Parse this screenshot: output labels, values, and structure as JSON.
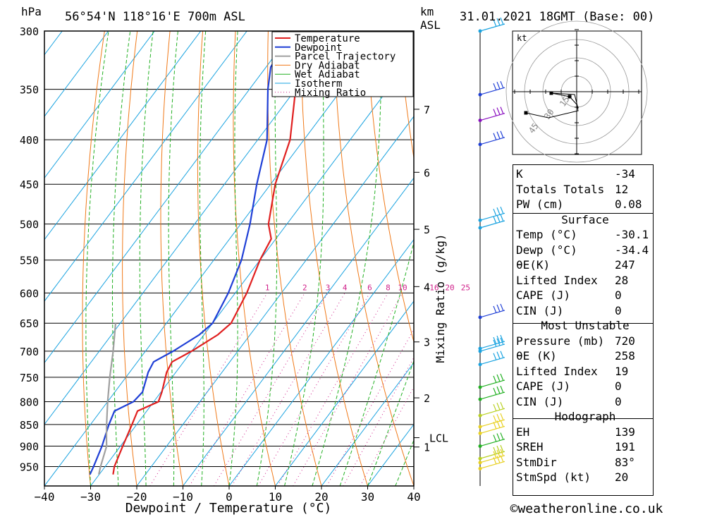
{
  "header": {
    "pressure_unit": "hPa",
    "location": "56°54'N  118°16'E  700m  ASL",
    "km_label": "km",
    "asl_label": "ASL",
    "datetime": "31.01.2021  18GMT  (Base: 00)"
  },
  "chart_data": {
    "type": "line",
    "chart_kind": "skew-T log-p sounding",
    "xlabel": "Dewpoint / Temperature (°C)",
    "ylabel_right": "Mixing Ratio (g/kg)",
    "pressure_ticks": [
      300,
      350,
      400,
      450,
      500,
      550,
      600,
      650,
      700,
      750,
      800,
      850,
      900,
      950
    ],
    "pressure_labels": [
      "300",
      "350",
      "400",
      "450",
      "500",
      "550",
      "600",
      "650",
      "700",
      "750",
      "800",
      "850",
      "900",
      "950"
    ],
    "temperature_ticks": [
      -40,
      -30,
      -20,
      -10,
      0,
      10,
      20,
      30,
      40
    ],
    "temperature_labels": [
      "−40",
      "−30",
      "−20",
      "−10",
      "0",
      "10",
      "20",
      "30",
      "40"
    ],
    "xlim": [
      -40,
      40
    ],
    "ylim": [
      1000,
      300
    ],
    "km_ticks": [
      {
        "label": "1",
        "p": 902
      },
      {
        "label": "2",
        "p": 792
      },
      {
        "label": "3",
        "p": 683
      },
      {
        "label": "4",
        "p": 590
      },
      {
        "label": "5",
        "p": 507
      },
      {
        "label": "6",
        "p": 436
      },
      {
        "label": "7",
        "p": 369
      }
    ],
    "lcl": {
      "label": "LCL",
      "p": 880
    },
    "mixing_ratio_labels": [
      "1",
      "2",
      "3",
      "4",
      "6",
      "8",
      "10",
      "16",
      "20",
      "25"
    ],
    "mixing_ratio_values": [
      1,
      2,
      3,
      4,
      6,
      8,
      10,
      16,
      20,
      25
    ],
    "legend": [
      "Temperature",
      "Dewpoint",
      "Parcel Trajectory",
      "Dry Adiabat",
      "Wet Adiabat",
      "Isotherm",
      "Mixing Ratio"
    ],
    "legend_position": "top-right",
    "series": [
      {
        "name": "Temperature",
        "color": "#e02020",
        "points": [
          [
            970,
            -27
          ],
          [
            950,
            -28
          ],
          [
            900,
            -29.5
          ],
          [
            850,
            -31
          ],
          [
            820,
            -32
          ],
          [
            800,
            -29
          ],
          [
            780,
            -29.8
          ],
          [
            740,
            -32
          ],
          [
            720,
            -32.5
          ],
          [
            700,
            -30
          ],
          [
            670,
            -27
          ],
          [
            650,
            -26
          ],
          [
            600,
            -27.5
          ],
          [
            550,
            -30
          ],
          [
            520,
            -31
          ],
          [
            500,
            -34
          ],
          [
            450,
            -39
          ],
          [
            400,
            -43
          ],
          [
            350,
            -50
          ],
          [
            330,
            -53
          ],
          [
            300,
            -54
          ]
        ]
      },
      {
        "name": "Dewpoint",
        "color": "#1f3fd6",
        "points": [
          [
            970,
            -32
          ],
          [
            950,
            -32.5
          ],
          [
            900,
            -34
          ],
          [
            850,
            -36
          ],
          [
            820,
            -37
          ],
          [
            800,
            -34.4
          ],
          [
            780,
            -34
          ],
          [
            740,
            -36
          ],
          [
            720,
            -36.5
          ],
          [
            700,
            -34
          ],
          [
            670,
            -31
          ],
          [
            650,
            -30
          ],
          [
            600,
            -31.5
          ],
          [
            550,
            -34
          ],
          [
            500,
            -38
          ],
          [
            450,
            -43
          ],
          [
            400,
            -48
          ],
          [
            350,
            -56
          ],
          [
            330,
            -59
          ],
          [
            300,
            -60
          ]
        ]
      },
      {
        "name": "Parcel Trajectory",
        "color": "#a0a0a0",
        "points": [
          [
            970,
            -30.1
          ],
          [
            950,
            -31
          ],
          [
            900,
            -33
          ],
          [
            880,
            -34.4
          ],
          [
            850,
            -36.5
          ],
          [
            800,
            -40
          ],
          [
            750,
            -43.5
          ],
          [
            700,
            -47
          ],
          [
            650,
            -51
          ]
        ]
      }
    ]
  },
  "hodograph": {
    "unit": "kt",
    "ring_labels": [
      "15",
      "30",
      "45"
    ]
  },
  "indices": {
    "k_label": "K",
    "k_value": "-34",
    "tt_label": "Totals Totals",
    "tt_value": "12",
    "pw_label": "PW (cm)",
    "pw_value": "0.08",
    "surface_title": "Surface",
    "temp_label": "Temp (°C)",
    "temp_value": "-30.1",
    "dewp_label": "Dewp (°C)",
    "dewp_value": "-34.4",
    "theta_e_label": "θE(K)",
    "theta_e_value": "247",
    "li_label": "Lifted Index",
    "li_value": "28",
    "cape_label": "CAPE (J)",
    "cape_value": "0",
    "cin_label": "CIN (J)",
    "cin_value": "0",
    "mu_title": "Most Unstable",
    "mu_pressure_label": "Pressure (mb)",
    "mu_pressure_value": "720",
    "mu_theta_label": "θE (K)",
    "mu_theta_value": "258",
    "mu_li_label": "Lifted Index",
    "mu_li_value": "19",
    "mu_cape_label": "CAPE (J)",
    "mu_cape_value": "0",
    "mu_cin_label": "CIN (J)",
    "mu_cin_value": "0",
    "hodo_title": "Hodograph",
    "eh_label": "EH",
    "eh_value": "139",
    "sreh_label": "SREH",
    "sreh_value": "191",
    "stmdir_label": "StmDir",
    "stmdir_value": "83°",
    "stmspd_label": "StmSpd (kt)",
    "stmspd_value": "20"
  },
  "footer": {
    "credit": "©weatheronline.co.uk"
  }
}
